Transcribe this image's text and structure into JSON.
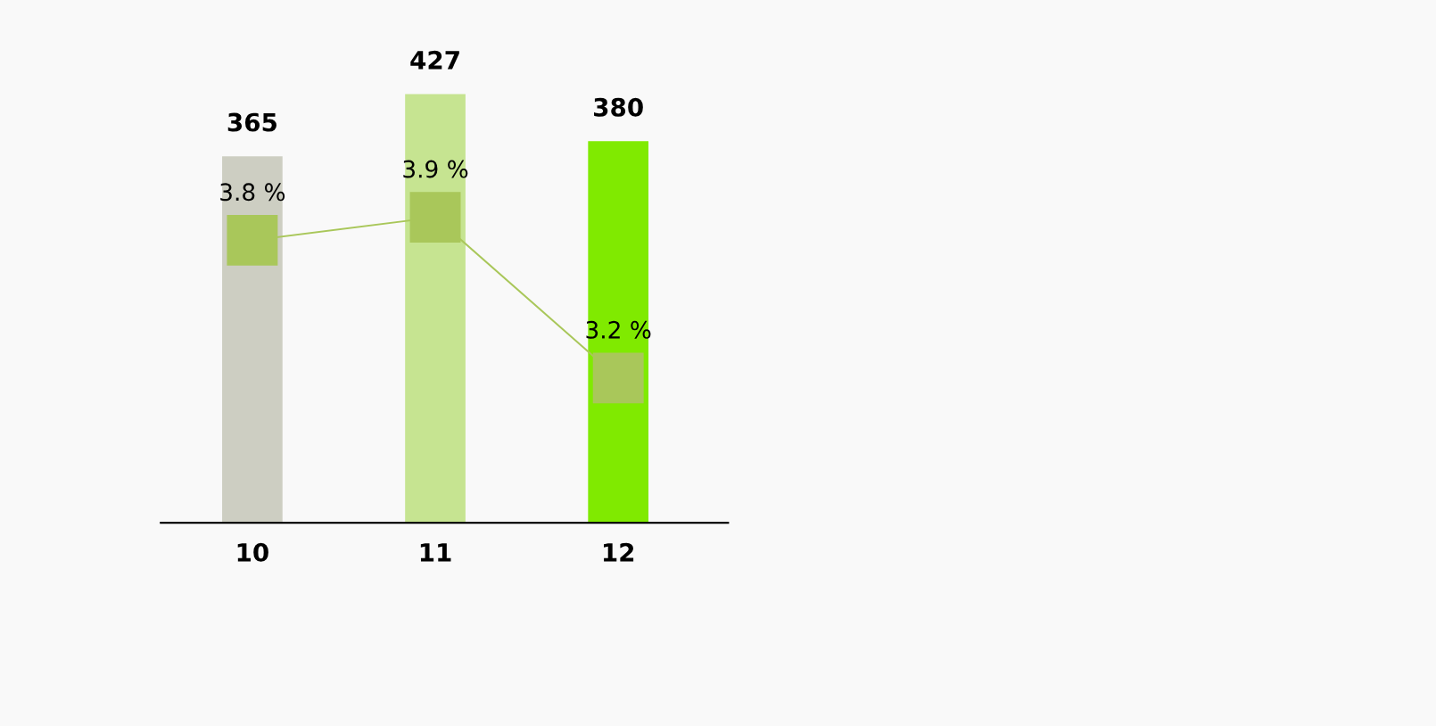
{
  "chart_data": {
    "type": "bar",
    "categories": [
      "10",
      "11",
      "12"
    ],
    "data_labels": true,
    "grid": false,
    "legend": false,
    "series": [
      {
        "colors": [
          "#cdcec2",
          "#c6e491",
          "#80ea00"
        ],
        "values": [
          365,
          427,
          380
        ]
      },
      {
        "type": "line",
        "axis": "y2",
        "color": "#a9c75a",
        "marker": "square",
        "line_style": "solid",
        "values": [
          3.8,
          3.9,
          3.2
        ],
        "value_labels": [
          "3.8 %",
          "3.9 %",
          "3.2 %"
        ]
      }
    ]
  }
}
